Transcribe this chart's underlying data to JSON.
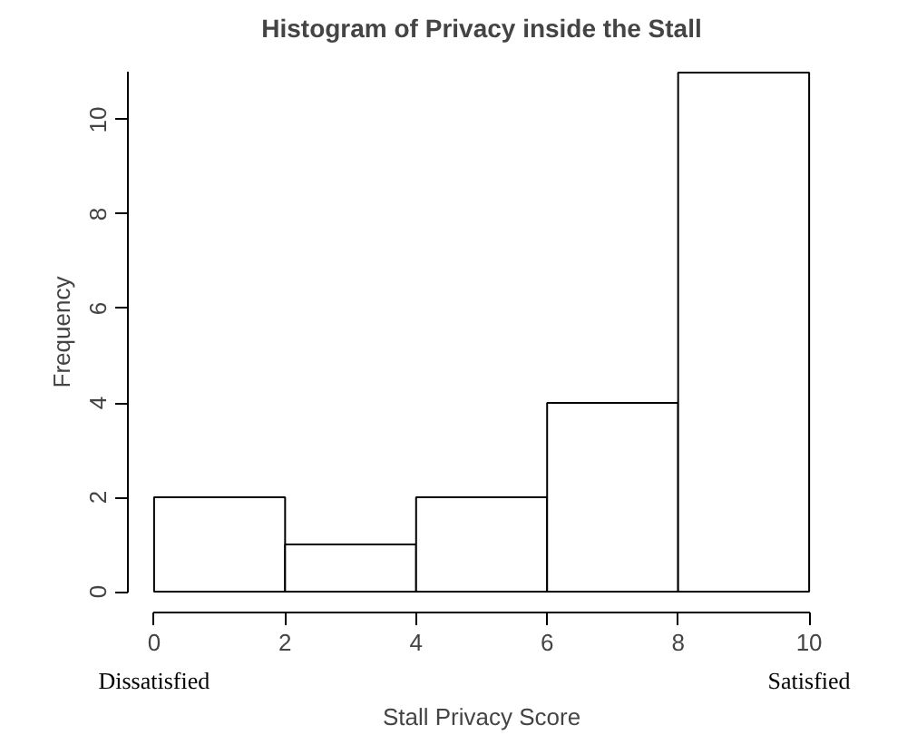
{
  "chart_data": {
    "type": "histogram",
    "title": "Histogram of Privacy inside the Stall",
    "xlabel": "Stall Privacy Score",
    "ylabel": "Frequency",
    "bins": [
      0,
      2,
      4,
      6,
      8,
      10
    ],
    "values": [
      2,
      1,
      2,
      4,
      11
    ],
    "color": "#ffffff",
    "xlim": [
      0,
      10
    ],
    "xticks": [
      0,
      2,
      4,
      6,
      8,
      10
    ],
    "ylim": [
      0,
      11
    ],
    "yticks": [
      0,
      2,
      4,
      6,
      8,
      10
    ],
    "grid": false,
    "annotations": [
      "Dissatisfied",
      "Satisfied"
    ]
  }
}
